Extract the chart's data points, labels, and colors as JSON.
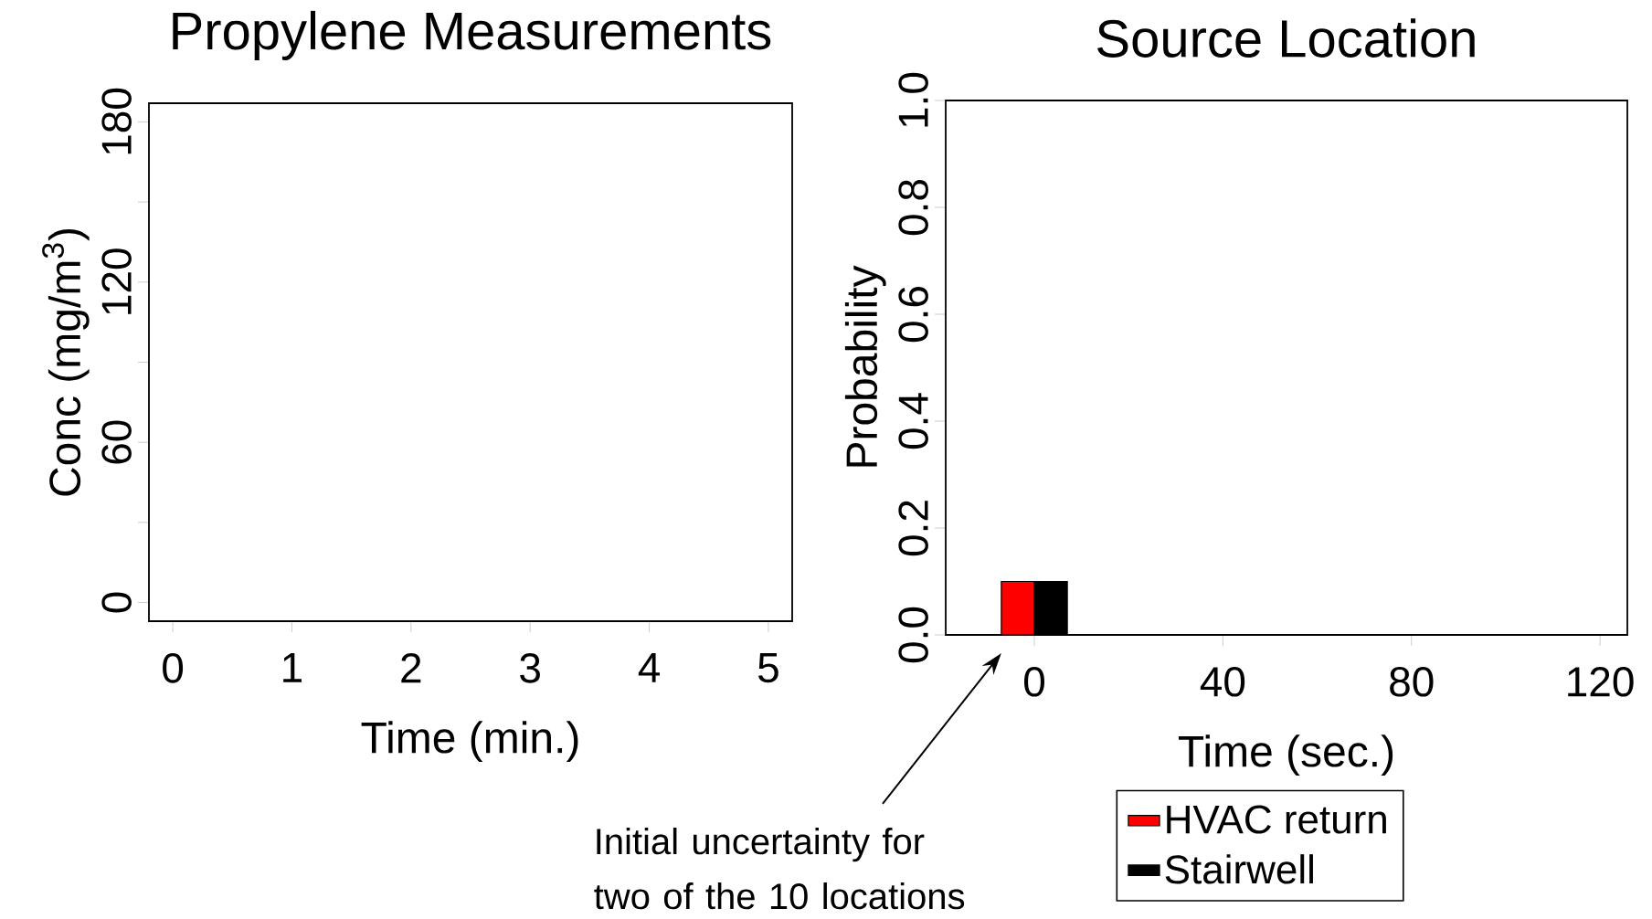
{
  "chart_data": [
    {
      "type": "line",
      "title": "Propylene Measurements",
      "xlabel": "Time (min.)",
      "ylabel": "Conc (mg/m$^{3}$)",
      "xlim": [
        -0.2,
        5.2
      ],
      "xticks": [
        0,
        1,
        2,
        3,
        4,
        5
      ],
      "ylim": [
        -7,
        187
      ],
      "yticks": [
        0,
        {
          "value": 30,
          "label": null
        },
        60,
        {
          "value": 90,
          "label": null
        },
        120,
        {
          "value": 150,
          "label": null
        },
        180
      ],
      "grid": false,
      "legend": false
    },
    {
      "type": "bar",
      "title": "Source Location",
      "xlabel": "Time (sec.)",
      "ylabel": "Probability",
      "x": [
        -3.5,
        3.5
      ],
      "series": [
        {
          "name": "HVAC return",
          "color": "#ff0000",
          "values": [
            0.1,
            null
          ]
        },
        {
          "name": "Stairwell",
          "color": "#000000",
          "values": [
            null,
            0.1
          ]
        }
      ],
      "xlim": [
        -18.8,
        125.8
      ],
      "xticks": [
        0,
        40,
        80,
        120
      ],
      "ylim": [
        0,
        1
      ],
      "yticks": [
        {
          "value": 0,
          "label": "0.0"
        },
        {
          "value": 0.2,
          "label": "0.2"
        },
        {
          "value": 0.4,
          "label": "0.4"
        },
        {
          "value": 0.6,
          "label": "0.6"
        },
        {
          "value": 0.8,
          "label": "0.8"
        },
        {
          "value": 1,
          "label": "1.0"
        }
      ],
      "grid": false,
      "legend": "bottom",
      "annotations": [
        "Initial uncertainty for two of the 10 locations"
      ]
    }
  ]
}
